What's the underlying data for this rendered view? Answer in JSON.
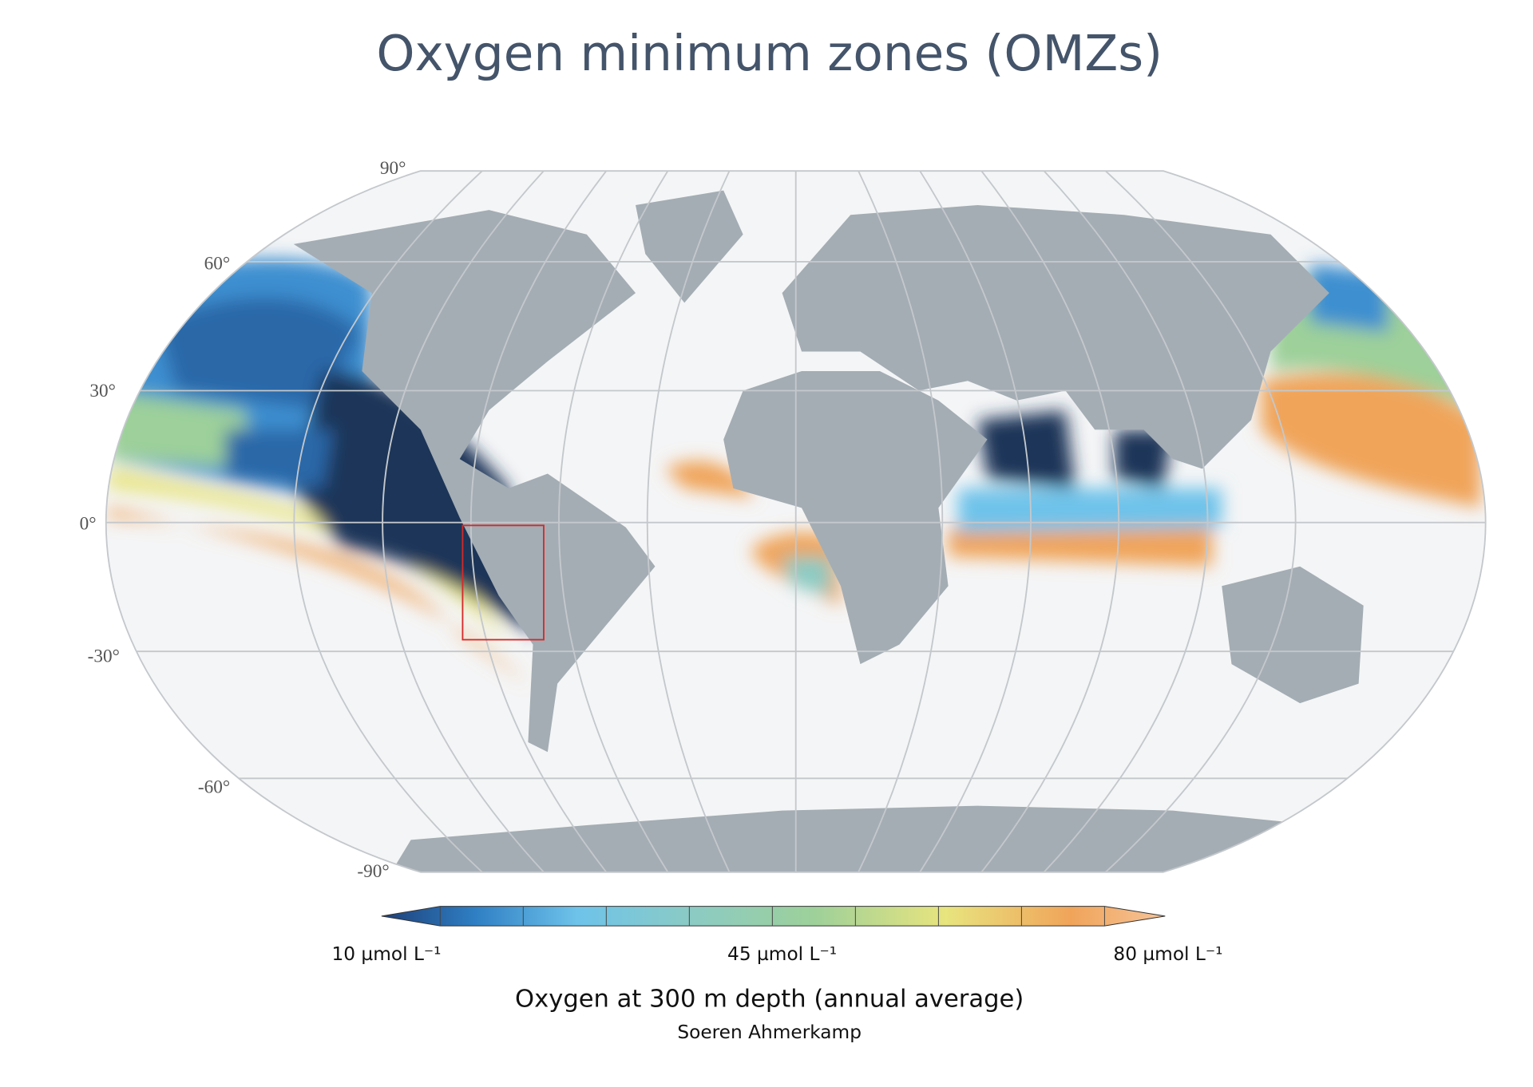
{
  "header": {
    "title": "Oxygen minimum zones (OMZs)"
  },
  "map": {
    "lat_labels": [
      "90°",
      "60°",
      "30°",
      "0°",
      "-30°",
      "-60°",
      "-90°"
    ]
  },
  "colorbar": {
    "labels": [
      "10 µmol L⁻¹",
      "45 µmol L⁻¹",
      "80 µmol L⁻¹"
    ]
  },
  "caption": "Oxygen at 300 m depth (annual average)",
  "credit": "Soeren Ahmerkamp"
}
